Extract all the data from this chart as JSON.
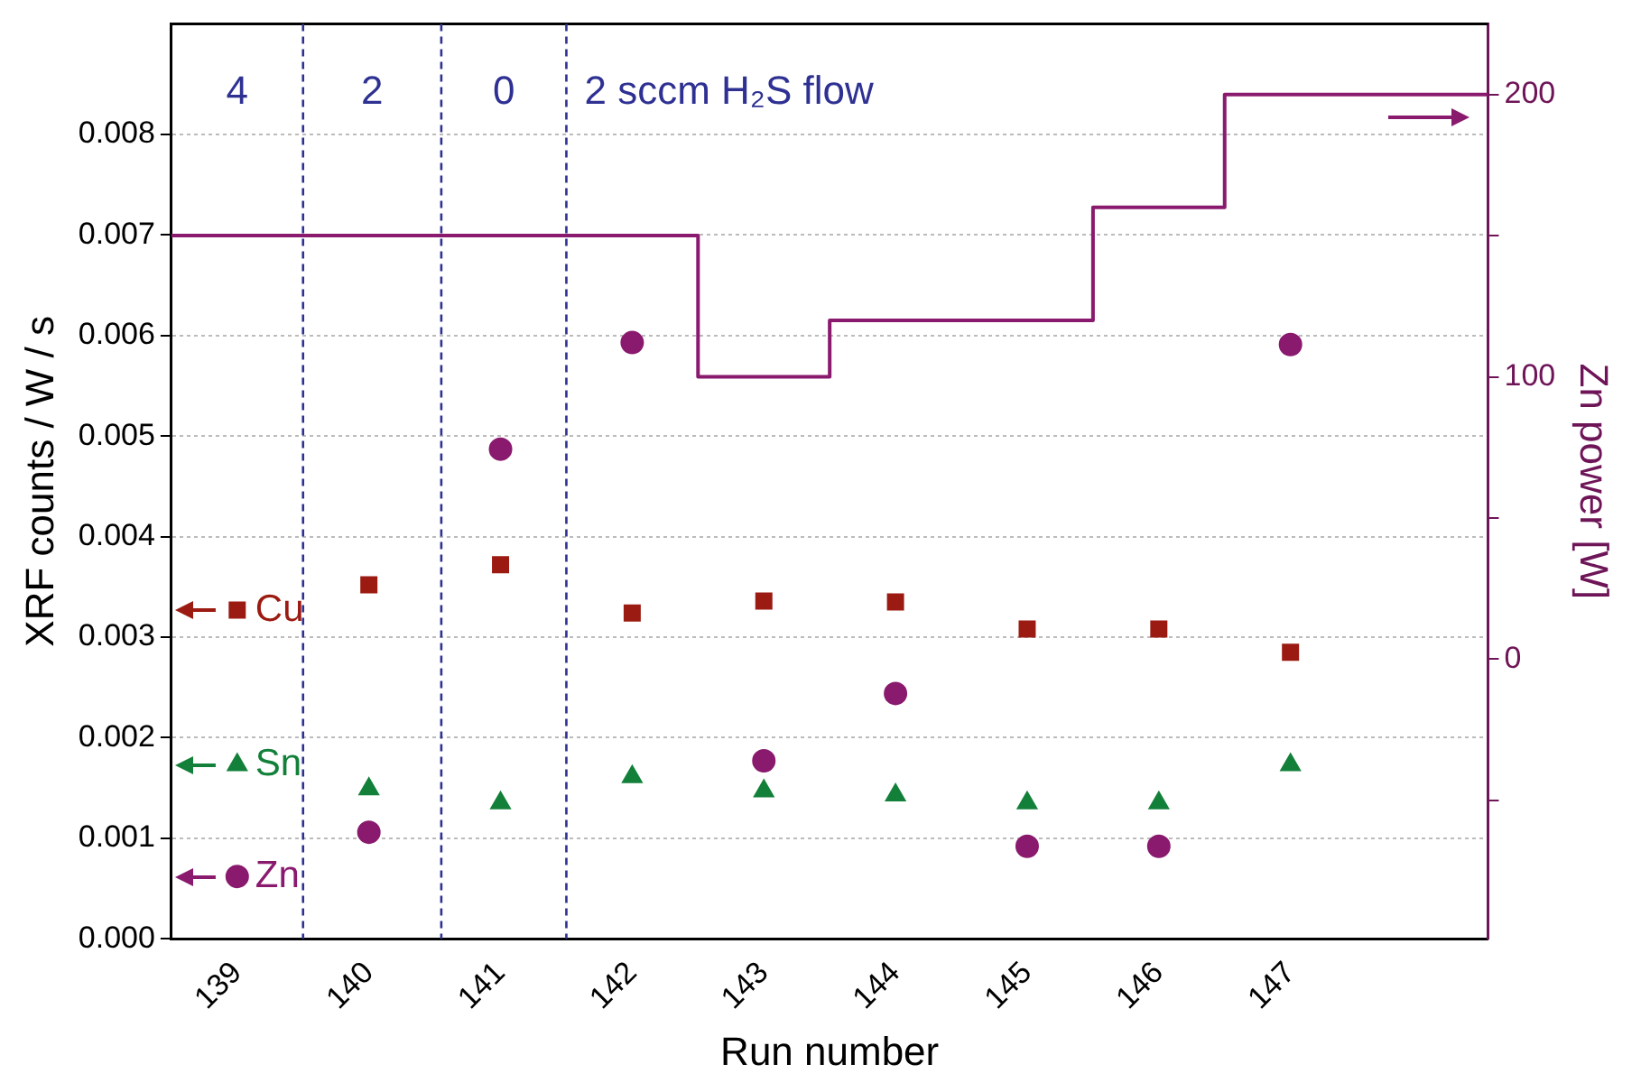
{
  "chart_data": {
    "type": "scatter",
    "xlabel": "Run number",
    "ylabel": "XRF counts / W / s",
    "y2label": "Zn power [W]",
    "x": [
      139,
      140,
      141,
      142,
      143,
      144,
      145,
      146,
      147
    ],
    "xlim": [
      138.5,
      148.5
    ],
    "xticks": [
      139,
      140,
      141,
      142,
      143,
      144,
      145,
      146,
      147
    ],
    "ylim": [
      0,
      0.0091
    ],
    "yticks": [
      {
        "value": 0,
        "label": "0.000"
      },
      {
        "value": 0.001,
        "label": "0.001"
      },
      {
        "value": 0.002,
        "label": "0.002"
      },
      {
        "value": 0.003,
        "label": "0.003"
      },
      {
        "value": 0.004,
        "label": "0.004"
      },
      {
        "value": 0.005,
        "label": "0.005"
      },
      {
        "value": 0.006,
        "label": "0.006"
      },
      {
        "value": 0.007,
        "label": "0.007"
      },
      {
        "value": 0.008,
        "label": "0.008"
      }
    ],
    "y2lim": [
      -99,
      225
    ],
    "y2ticks": [
      {
        "value": -50,
        "label": null
      },
      0,
      {
        "value": 50,
        "label": null
      },
      100,
      {
        "value": 150,
        "label": null
      },
      200
    ],
    "grid": "y",
    "legend": "left",
    "series": [
      {
        "name": "Cu",
        "color": "#9b1b12",
        "marker": "square",
        "values": [
          0.00327,
          0.00352,
          0.00372,
          0.00324,
          0.00336,
          0.00335,
          0.00308,
          0.00308,
          0.00285
        ]
      },
      {
        "name": "Sn",
        "color": "#13803a",
        "marker": "triangle",
        "values": [
          0.00173,
          0.00149,
          0.00135,
          0.00161,
          0.00147,
          0.00143,
          0.00135,
          0.00135,
          0.00173
        ]
      },
      {
        "name": "Zn",
        "color": "#8a1a6e",
        "marker": "circle",
        "values": [
          0.00062,
          0.00106,
          0.00487,
          0.00593,
          0.00177,
          0.00244,
          0.00092,
          0.00092,
          0.00591
        ]
      },
      {
        "type": "step",
        "axis": "y2",
        "color": "#8a1a6e",
        "marker": "none",
        "x": [
          138.5,
          142.5,
          143.5,
          145.5,
          146.5,
          148.5
        ],
        "values": [
          150,
          100,
          120,
          160,
          200,
          200
        ]
      }
    ],
    "ref_lines": [
      {
        "axis": "x",
        "value": 139.5,
        "color": "#2e3192",
        "line_style": "dashed"
      },
      {
        "axis": "x",
        "value": 140.55,
        "color": "#2e3192",
        "line_style": "dashed"
      },
      {
        "axis": "x",
        "value": 141.5,
        "color": "#2e3192",
        "line_style": "dashed"
      }
    ],
    "annotations": [
      "4",
      "2",
      "0",
      "2 sccm H₂S flow"
    ]
  }
}
